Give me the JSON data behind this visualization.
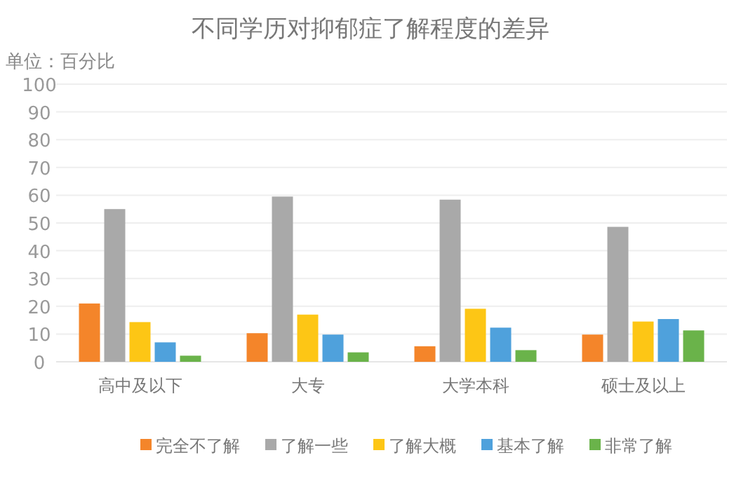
{
  "chart_data": {
    "type": "bar",
    "title": "不同学历对抑郁症了解程度的差异",
    "annotations": [
      "单位：百分比"
    ],
    "categories": [
      "高中及以下",
      "大专",
      "大学本科",
      "硕士及以上"
    ],
    "series": [
      {
        "name": "完全不了解",
        "color": "#f4852a",
        "values": [
          21,
          10.3,
          5.6,
          9.8
        ]
      },
      {
        "name": "了解一些",
        "color": "#a9a9a9",
        "values": [
          55,
          59.5,
          58.4,
          48.6
        ]
      },
      {
        "name": "了解大概",
        "color": "#fdc615",
        "values": [
          14.3,
          17,
          19.1,
          14.5
        ]
      },
      {
        "name": "基本了解",
        "color": "#4fa1dc",
        "values": [
          7,
          9.8,
          12.3,
          15.4
        ]
      },
      {
        "name": "非常了解",
        "color": "#6ab34a",
        "values": [
          2.2,
          3.4,
          4.2,
          11.3
        ]
      }
    ],
    "ylim": [
      0,
      100
    ],
    "yticks": [
      0,
      10,
      20,
      30,
      40,
      50,
      60,
      70,
      80,
      90,
      100
    ],
    "grid": "y",
    "legend": "bottom"
  }
}
